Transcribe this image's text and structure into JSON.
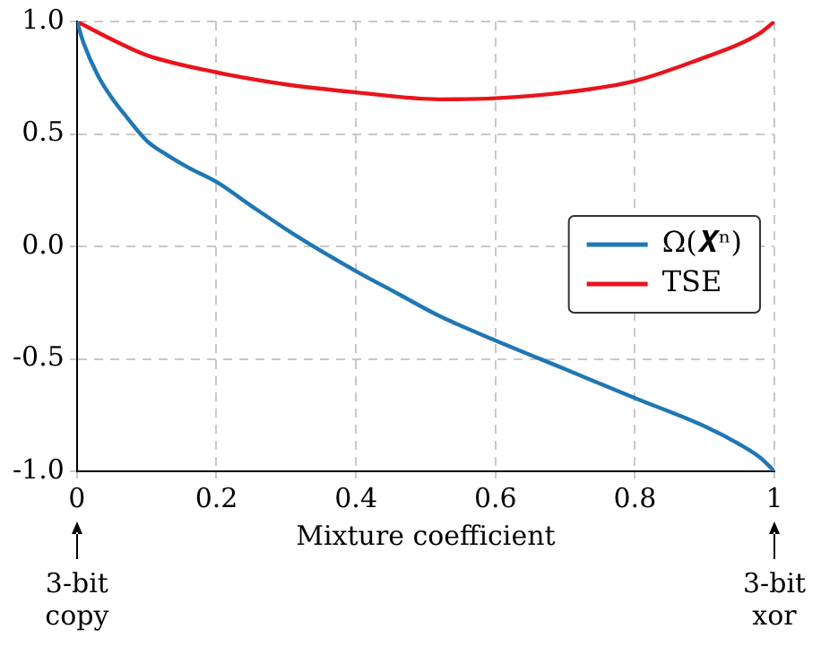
{
  "chart_data": {
    "type": "line",
    "xlabel": "Mixture coefficient",
    "xlim": [
      0,
      1
    ],
    "xticks": [
      0,
      0.2,
      0.4,
      0.6,
      0.8,
      1
    ],
    "ylim": [
      -1,
      1
    ],
    "yticks": [
      {
        "value": -1,
        "label": "-1.0"
      },
      {
        "value": -0.5,
        "label": "-0.5"
      },
      {
        "value": 0,
        "label": "0.0"
      },
      {
        "value": 0.5,
        "label": "0.5"
      },
      {
        "value": 1,
        "label": "1.0"
      }
    ],
    "grid": true,
    "legend": "right",
    "marker": "none",
    "line_style": "solid",
    "series": [
      {
        "name": "Ω(𝑿ⁿ)",
        "color": "#1f77b4",
        "x": [
          0,
          0.01,
          0.03,
          0.05,
          0.07,
          0.1,
          0.13,
          0.16,
          0.2,
          0.25,
          0.318,
          0.4,
          0.46,
          0.52,
          0.6,
          0.7,
          0.8,
          0.9,
          0.95,
          0.98,
          1
        ],
        "values": [
          1,
          0.9,
          0.76,
          0.66,
          0.58,
          0.47,
          0.405,
          0.35,
          0.287,
          0.18,
          0.04,
          -0.11,
          -0.21,
          -0.31,
          -0.418,
          -0.546,
          -0.674,
          -0.8,
          -0.88,
          -0.94,
          -1
        ]
      },
      {
        "name": "TSE",
        "color": "#e8141c",
        "x": [
          0,
          0.05,
          0.1,
          0.2,
          0.3,
          0.4,
          0.52,
          0.6,
          0.7,
          0.8,
          0.9,
          0.95,
          0.98,
          1
        ],
        "values": [
          1,
          0.92,
          0.85,
          0.774,
          0.72,
          0.685,
          0.654,
          0.659,
          0.685,
          0.736,
          0.84,
          0.9,
          0.95,
          1
        ]
      }
    ],
    "annotations": [
      "3-bit copy",
      "3-bit xor"
    ]
  }
}
